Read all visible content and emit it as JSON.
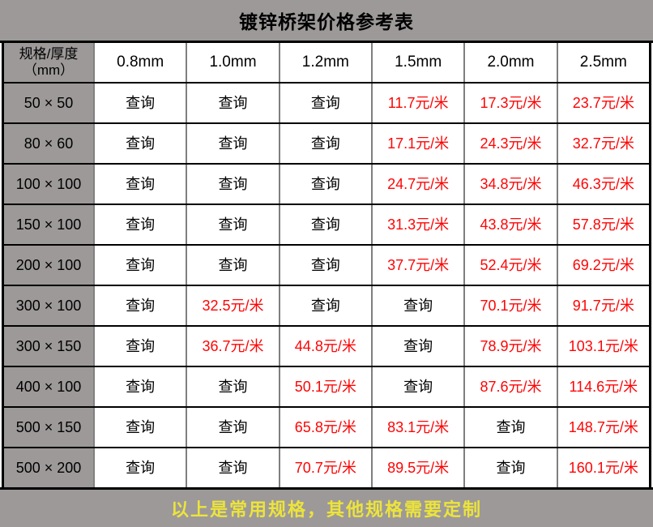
{
  "page": {
    "title": "镀锌桥架价格参考表",
    "footer_note": "以上是常用规格，其他规格需要定制"
  },
  "table": {
    "spec_header": {
      "line1": "规格/厚度",
      "line2": "（mm）"
    },
    "thickness_headers": [
      "0.8mm",
      "1.0mm",
      "1.2mm",
      "1.5mm",
      "2.0mm",
      "2.5mm"
    ],
    "query_label": "查询",
    "rows": [
      {
        "spec": "50 × 50",
        "cells": [
          {
            "text": "查询",
            "kind": "query"
          },
          {
            "text": "查询",
            "kind": "query"
          },
          {
            "text": "查询",
            "kind": "query"
          },
          {
            "text": "11.7元/米",
            "kind": "price"
          },
          {
            "text": "17.3元/米",
            "kind": "price"
          },
          {
            "text": "23.7元/米",
            "kind": "price"
          }
        ]
      },
      {
        "spec": "80 × 60",
        "cells": [
          {
            "text": "查询",
            "kind": "query"
          },
          {
            "text": "查询",
            "kind": "query"
          },
          {
            "text": "查询",
            "kind": "query"
          },
          {
            "text": "17.1元/米",
            "kind": "price"
          },
          {
            "text": "24.3元/米",
            "kind": "price"
          },
          {
            "text": "32.7元/米",
            "kind": "price"
          }
        ]
      },
      {
        "spec": "100 × 100",
        "cells": [
          {
            "text": "查询",
            "kind": "query"
          },
          {
            "text": "查询",
            "kind": "query"
          },
          {
            "text": "查询",
            "kind": "query"
          },
          {
            "text": "24.7元/米",
            "kind": "price"
          },
          {
            "text": "34.8元/米",
            "kind": "price"
          },
          {
            "text": "46.3元/米",
            "kind": "price"
          }
        ]
      },
      {
        "spec": "150 × 100",
        "cells": [
          {
            "text": "查询",
            "kind": "query"
          },
          {
            "text": "查询",
            "kind": "query"
          },
          {
            "text": "查询",
            "kind": "query"
          },
          {
            "text": "31.3元/米",
            "kind": "price"
          },
          {
            "text": "43.8元/米",
            "kind": "price"
          },
          {
            "text": "57.8元/米",
            "kind": "price"
          }
        ]
      },
      {
        "spec": "200 × 100",
        "cells": [
          {
            "text": "查询",
            "kind": "query"
          },
          {
            "text": "查询",
            "kind": "query"
          },
          {
            "text": "查询",
            "kind": "query"
          },
          {
            "text": "37.7元/米",
            "kind": "price"
          },
          {
            "text": "52.4元/米",
            "kind": "price"
          },
          {
            "text": "69.2元/米",
            "kind": "price"
          }
        ]
      },
      {
        "spec": "300 × 100",
        "cells": [
          {
            "text": "查询",
            "kind": "query"
          },
          {
            "text": "32.5元/米",
            "kind": "price"
          },
          {
            "text": "查询",
            "kind": "query"
          },
          {
            "text": "查询",
            "kind": "query"
          },
          {
            "text": "70.1元/米",
            "kind": "price"
          },
          {
            "text": "91.7元/米",
            "kind": "price"
          }
        ]
      },
      {
        "spec": "300 × 150",
        "cells": [
          {
            "text": "查询",
            "kind": "query"
          },
          {
            "text": "36.7元/米",
            "kind": "price"
          },
          {
            "text": "44.8元/米",
            "kind": "price"
          },
          {
            "text": "查询",
            "kind": "query"
          },
          {
            "text": "78.9元/米",
            "kind": "price"
          },
          {
            "text": "103.1元/米",
            "kind": "price"
          }
        ]
      },
      {
        "spec": "400 × 100",
        "cells": [
          {
            "text": "查询",
            "kind": "query"
          },
          {
            "text": "查询",
            "kind": "query"
          },
          {
            "text": "50.1元/米",
            "kind": "price"
          },
          {
            "text": "查询",
            "kind": "query"
          },
          {
            "text": "87.6元/米",
            "kind": "price"
          },
          {
            "text": "114.6元/米",
            "kind": "price"
          }
        ]
      },
      {
        "spec": "500 × 150",
        "cells": [
          {
            "text": "查询",
            "kind": "query"
          },
          {
            "text": "查询",
            "kind": "query"
          },
          {
            "text": "65.8元/米",
            "kind": "price"
          },
          {
            "text": "83.1元/米",
            "kind": "price"
          },
          {
            "text": "查询",
            "kind": "query"
          },
          {
            "text": "148.7元/米",
            "kind": "price"
          }
        ]
      },
      {
        "spec": "500 × 200",
        "cells": [
          {
            "text": "查询",
            "kind": "query"
          },
          {
            "text": "查询",
            "kind": "query"
          },
          {
            "text": "70.7元/米",
            "kind": "price"
          },
          {
            "text": "89.5元/米",
            "kind": "price"
          },
          {
            "text": "查询",
            "kind": "query"
          },
          {
            "text": "160.1元/米",
            "kind": "price"
          }
        ]
      }
    ]
  },
  "colors": {
    "gray_bg": "#9d9999",
    "price_red": "#fe0505",
    "footer_yellow": "#ece43a",
    "horizontal_border": "#000000",
    "vertical_border": "#7f7f7f",
    "cell_bg": "#ffffff"
  }
}
